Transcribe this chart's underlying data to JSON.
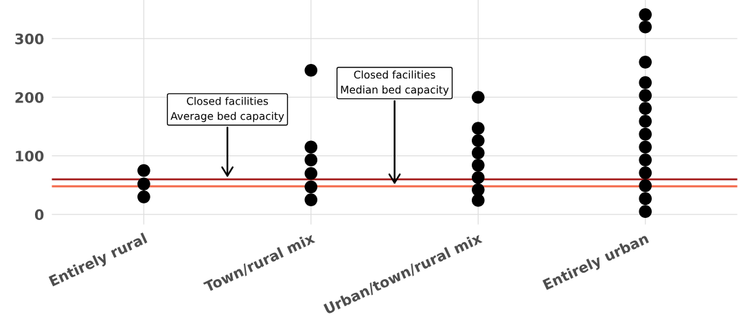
{
  "chart_data": {
    "type": "scatter",
    "categories": [
      "Entirely rural",
      "Town/rural mix",
      "Urban/town/rural mix",
      "Entirely urban"
    ],
    "series": [
      {
        "color": "#000000",
        "x": [
          "Entirely rural",
          "Entirely rural",
          "Entirely rural"
        ],
        "values": [
          75,
          52,
          30
        ]
      },
      {
        "color": "#000000",
        "x": [
          "Town/rural mix",
          "Town/rural mix",
          "Town/rural mix",
          "Town/rural mix",
          "Town/rural mix",
          "Town/rural mix"
        ],
        "values": [
          246,
          115,
          93,
          70,
          47,
          25
        ]
      },
      {
        "color": "#000000",
        "x": [
          "Urban/town/rural mix",
          "Urban/town/rural mix",
          "Urban/town/rural mix",
          "Urban/town/rural mix",
          "Urban/town/rural mix",
          "Urban/town/rural mix",
          "Urban/town/rural mix",
          "Urban/town/rural mix"
        ],
        "values": [
          200,
          147,
          126,
          105,
          84,
          63,
          42,
          24
        ]
      },
      {
        "color": "#000000",
        "x": [
          "Entirely urban",
          "Entirely urban",
          "Entirely urban",
          "Entirely urban",
          "Entirely urban",
          "Entirely urban",
          "Entirely urban",
          "Entirely urban",
          "Entirely urban",
          "Entirely urban",
          "Entirely urban",
          "Entirely urban",
          "Entirely urban",
          "Entirely urban"
        ],
        "values": [
          341,
          320,
          260,
          225,
          203,
          181,
          159,
          137,
          115,
          93,
          71,
          49,
          27,
          5
        ]
      }
    ],
    "ref_lines": [
      {
        "axis": "y",
        "value": 60,
        "color": "#a51c1c"
      },
      {
        "axis": "y",
        "value": 48,
        "color": "#f4694a"
      }
    ],
    "annotations": [
      "Closed facilities\nAverage bed capacity",
      "Closed facilities\nMedian bed capacity"
    ],
    "ylim": [
      -17,
      366
    ],
    "yticks": [
      0,
      100,
      200,
      300
    ],
    "grid": true,
    "marker": "circle"
  }
}
